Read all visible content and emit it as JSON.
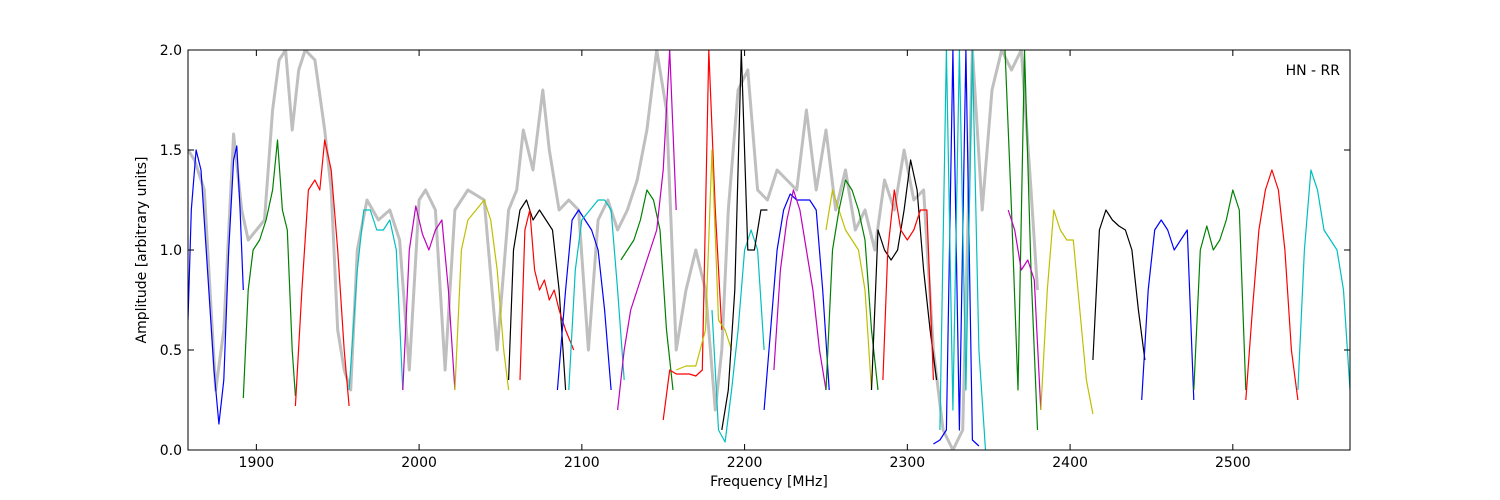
{
  "chart_data": {
    "type": "line",
    "title": "",
    "annotation": "HN - RR",
    "xlabel": "Frequency [MHz]",
    "ylabel": "Amplitude [arbitrary units]",
    "xlim": [
      1858,
      2572
    ],
    "ylim": [
      0.0,
      2.0
    ],
    "xticks": [
      1900,
      2000,
      2100,
      2200,
      2300,
      2400,
      2500
    ],
    "yticks": [
      0.0,
      0.5,
      1.0,
      1.5,
      2.0
    ],
    "xtick_labels": [
      "1900",
      "2000",
      "2100",
      "2200",
      "2300",
      "2400",
      "2500"
    ],
    "ytick_labels": [
      "0.0",
      "0.5",
      "1.0",
      "1.5",
      "2.0"
    ],
    "grid": false,
    "envelope": {
      "color": "#bfbfbf",
      "x": [
        1858,
        1862,
        1868,
        1875,
        1880,
        1886,
        1891,
        1895,
        1900,
        1905,
        1910,
        1914,
        1918,
        1922,
        1926,
        1930,
        1936,
        1942,
        1946,
        1950,
        1954,
        1958,
        1962,
        1968,
        1975,
        1982,
        1988,
        1994,
        2000,
        2004,
        2010,
        2016,
        2022,
        2030,
        2040,
        2048,
        2055,
        2060,
        2064,
        2070,
        2076,
        2080,
        2086,
        2092,
        2098,
        2104,
        2110,
        2116,
        2122,
        2128,
        2134,
        2140,
        2146,
        2152,
        2158,
        2164,
        2170,
        2176,
        2182,
        2186,
        2190,
        2196,
        2202,
        2208,
        2214,
        2220,
        2226,
        2232,
        2238,
        2244,
        2250,
        2256,
        2262,
        2268,
        2274,
        2280,
        2286,
        2292,
        2298,
        2304,
        2310,
        2316,
        2322,
        2328,
        2334,
        2340,
        2346,
        2352,
        2358,
        2364,
        2370,
        2376,
        2380
      ],
      "y": [
        1.5,
        1.45,
        1.3,
        0.3,
        0.6,
        1.58,
        1.2,
        1.05,
        1.1,
        1.15,
        1.7,
        1.95,
        2.0,
        1.6,
        1.9,
        2.0,
        1.95,
        1.6,
        1.3,
        0.6,
        0.4,
        0.3,
        1.0,
        1.25,
        1.15,
        1.2,
        1.05,
        0.4,
        1.25,
        1.3,
        1.2,
        0.4,
        1.2,
        1.3,
        1.25,
        0.5,
        1.2,
        1.3,
        1.6,
        1.4,
        1.8,
        1.5,
        1.2,
        1.25,
        1.2,
        0.5,
        1.15,
        1.25,
        1.1,
        1.2,
        1.35,
        1.6,
        2.0,
        1.7,
        0.5,
        0.8,
        1.0,
        0.8,
        0.2,
        0.5,
        1.2,
        1.8,
        1.9,
        1.3,
        1.25,
        1.4,
        1.35,
        1.3,
        1.7,
        1.3,
        1.6,
        1.2,
        1.4,
        1.1,
        1.2,
        1.0,
        1.35,
        1.2,
        1.5,
        1.25,
        1.3,
        0.5,
        0.1,
        0.0,
        0.1,
        2.0,
        1.2,
        1.8,
        2.0,
        1.9,
        2.0,
        1.3,
        0.8
      ]
    },
    "series": [
      {
        "color": "#0000ff",
        "x": [
          1858,
          1860,
          1863,
          1866,
          1870,
          1874,
          1877,
          1880,
          1883,
          1886,
          1888,
          1890,
          1892
        ],
        "y": [
          0.65,
          1.2,
          1.5,
          1.4,
          0.9,
          0.4,
          0.13,
          0.35,
          1.0,
          1.45,
          1.52,
          1.2,
          0.8
        ]
      },
      {
        "color": "#008000",
        "x": [
          1892,
          1895,
          1898,
          1902,
          1906,
          1910,
          1913,
          1916,
          1919,
          1922,
          1924
        ],
        "y": [
          0.26,
          0.8,
          1.0,
          1.05,
          1.15,
          1.3,
          1.55,
          1.2,
          1.1,
          0.5,
          0.27
        ]
      },
      {
        "color": "#ff0000",
        "x": [
          1924,
          1928,
          1932,
          1936,
          1939,
          1942,
          1946,
          1950,
          1954,
          1957
        ],
        "y": [
          0.22,
          0.8,
          1.3,
          1.35,
          1.3,
          1.55,
          1.4,
          1.0,
          0.5,
          0.22
        ]
      },
      {
        "color": "#00bfbf",
        "x": [
          1957,
          1962,
          1966,
          1970,
          1974,
          1978,
          1982,
          1986,
          1990
        ],
        "y": [
          0.3,
          0.9,
          1.2,
          1.2,
          1.1,
          1.1,
          1.15,
          1.0,
          0.3
        ]
      },
      {
        "color": "#bf00bf",
        "x": [
          1990,
          1994,
          1998,
          2002,
          2006,
          2010,
          2014,
          2018,
          2022
        ],
        "y": [
          0.3,
          1.0,
          1.22,
          1.08,
          1.0,
          1.1,
          1.15,
          0.8,
          0.3
        ]
      },
      {
        "color": "#bfbf00",
        "x": [
          2022,
          2026,
          2030,
          2035,
          2040,
          2044,
          2048,
          2052,
          2055
        ],
        "y": [
          0.3,
          1.0,
          1.15,
          1.2,
          1.25,
          1.15,
          0.9,
          0.5,
          0.3
        ]
      },
      {
        "color": "#000000",
        "x": [
          2055,
          2058,
          2062,
          2066,
          2070,
          2074,
          2078,
          2082,
          2086,
          2090
        ],
        "y": [
          0.35,
          1.0,
          1.2,
          1.25,
          1.15,
          1.2,
          1.15,
          1.1,
          0.8,
          0.3
        ]
      },
      {
        "color": "#ff0000",
        "x": [
          2062,
          2065,
          2068,
          2071,
          2074,
          2077,
          2080,
          2083,
          2086,
          2090,
          2095
        ],
        "y": [
          0.35,
          1.1,
          1.2,
          0.9,
          0.8,
          0.85,
          0.75,
          0.8,
          0.7,
          0.6,
          0.5
        ]
      },
      {
        "color": "#0000ff",
        "x": [
          2085,
          2090,
          2094,
          2098,
          2102,
          2106,
          2110,
          2114,
          2118
        ],
        "y": [
          0.3,
          0.8,
          1.15,
          1.2,
          1.15,
          1.1,
          1.0,
          0.7,
          0.3
        ]
      },
      {
        "color": "#00bfbf",
        "x": [
          2092,
          2096,
          2100,
          2105,
          2110,
          2114,
          2118,
          2122,
          2126
        ],
        "y": [
          0.3,
          0.9,
          1.15,
          1.2,
          1.25,
          1.25,
          1.2,
          0.8,
          0.35
        ]
      },
      {
        "color": "#008000",
        "x": [
          2124,
          2128,
          2132,
          2136,
          2140,
          2144,
          2148,
          2152,
          2156
        ],
        "y": [
          0.95,
          1.0,
          1.05,
          1.15,
          1.3,
          1.25,
          1.1,
          0.6,
          0.3
        ]
      },
      {
        "color": "#bf00bf",
        "x": [
          2122,
          2126,
          2130,
          2134,
          2138,
          2142,
          2146,
          2150,
          2154,
          2158
        ],
        "y": [
          0.2,
          0.5,
          0.7,
          0.8,
          0.9,
          1.0,
          1.1,
          1.4,
          2.0,
          1.2
        ]
      },
      {
        "color": "#ff0000",
        "x": [
          2150,
          2154,
          2158,
          2162,
          2166,
          2170,
          2174,
          2178,
          2182,
          2186
        ],
        "y": [
          0.15,
          0.4,
          0.38,
          0.38,
          0.38,
          0.37,
          0.4,
          2.0,
          1.2,
          0.6
        ]
      },
      {
        "color": "#bfbf00",
        "x": [
          2158,
          2164,
          2170,
          2176,
          2180,
          2184,
          2188,
          2192
        ],
        "y": [
          0.4,
          0.42,
          0.42,
          0.6,
          1.5,
          0.65,
          0.6,
          0.5
        ]
      },
      {
        "color": "#00bfbf",
        "x": [
          2180,
          2184,
          2188,
          2192,
          2196,
          2200,
          2204,
          2208,
          2212
        ],
        "y": [
          0.7,
          0.1,
          0.04,
          0.3,
          0.6,
          1.0,
          1.1,
          1.0,
          0.5
        ]
      },
      {
        "color": "#000000",
        "x": [
          2186,
          2190,
          2194,
          2198,
          2202,
          2206,
          2210,
          2214
        ],
        "y": [
          0.1,
          0.3,
          0.8,
          2.0,
          1.0,
          1.0,
          1.2,
          1.2
        ]
      },
      {
        "color": "#0000ff",
        "x": [
          2212,
          2216,
          2220,
          2224,
          2228,
          2232,
          2236,
          2240,
          2244,
          2248,
          2252
        ],
        "y": [
          0.2,
          0.6,
          1.0,
          1.2,
          1.28,
          1.25,
          1.25,
          1.25,
          1.2,
          0.8,
          0.3
        ]
      },
      {
        "color": "#bf00bf",
        "x": [
          2218,
          2222,
          2226,
          2230,
          2234,
          2238,
          2242,
          2246,
          2250
        ],
        "y": [
          0.4,
          0.9,
          1.15,
          1.3,
          1.2,
          1.0,
          0.8,
          0.5,
          0.3
        ]
      },
      {
        "color": "#bfbf00",
        "x": [
          2250,
          2254,
          2258,
          2262,
          2266,
          2270,
          2274,
          2278
        ],
        "y": [
          1.1,
          1.3,
          1.2,
          1.1,
          1.05,
          1.0,
          0.8,
          0.3
        ]
      },
      {
        "color": "#008000",
        "x": [
          2250,
          2254,
          2258,
          2262,
          2266,
          2270,
          2274,
          2278,
          2282
        ],
        "y": [
          0.3,
          1.0,
          1.2,
          1.35,
          1.3,
          1.2,
          1.05,
          0.6,
          0.3
        ]
      },
      {
        "color": "#000000",
        "x": [
          2278,
          2282,
          2286,
          2290,
          2294,
          2298,
          2302,
          2306,
          2310,
          2314,
          2318
        ],
        "y": [
          0.3,
          1.1,
          1.0,
          0.95,
          1.0,
          1.2,
          1.45,
          1.3,
          0.9,
          0.6,
          0.35
        ]
      },
      {
        "color": "#ff0000",
        "x": [
          2285,
          2288,
          2292,
          2296,
          2300,
          2304,
          2308,
          2312,
          2316
        ],
        "y": [
          0.35,
          1.0,
          1.3,
          1.1,
          1.05,
          1.1,
          1.2,
          1.2,
          0.35
        ]
      },
      {
        "color": "#0000ff",
        "x": [
          2316,
          2320,
          2324,
          2328,
          2332,
          2336,
          2340,
          2344
        ],
        "y": [
          0.03,
          0.05,
          0.1,
          2.0,
          0.1,
          2.0,
          0.05,
          0.02
        ]
      },
      {
        "color": "#00bfbf",
        "x": [
          2320,
          2324,
          2328,
          2332,
          2336,
          2340,
          2344,
          2348
        ],
        "y": [
          0.1,
          2.0,
          0.2,
          2.0,
          0.3,
          2.0,
          0.5,
          0.0
        ]
      },
      {
        "color": "#008000",
        "x": [
          2360,
          2364,
          2368,
          2372,
          2376,
          2380
        ],
        "y": [
          2.0,
          1.2,
          0.3,
          2.0,
          0.9,
          0.1
        ]
      },
      {
        "color": "#bf00bf",
        "x": [
          2362,
          2366,
          2370,
          2374,
          2378,
          2382
        ],
        "y": [
          1.2,
          1.1,
          0.9,
          0.95,
          0.85,
          0.2
        ]
      },
      {
        "color": "#bfbf00",
        "x": [
          2382,
          2386,
          2390,
          2394,
          2398,
          2402,
          2406,
          2410,
          2414
        ],
        "y": [
          0.2,
          0.8,
          1.2,
          1.1,
          1.05,
          1.05,
          0.7,
          0.35,
          0.18
        ]
      },
      {
        "color": "#000000",
        "x": [
          2414,
          2418,
          2422,
          2426,
          2430,
          2434,
          2438,
          2442,
          2446
        ],
        "y": [
          0.45,
          1.1,
          1.2,
          1.15,
          1.12,
          1.1,
          1.0,
          0.7,
          0.45
        ]
      },
      {
        "color": "#0000ff",
        "x": [
          2444,
          2448,
          2452,
          2456,
          2460,
          2464,
          2468,
          2472,
          2476
        ],
        "y": [
          0.25,
          0.8,
          1.1,
          1.15,
          1.1,
          1.0,
          1.05,
          1.1,
          0.25
        ]
      },
      {
        "color": "#008000",
        "x": [
          2476,
          2480,
          2484,
          2488,
          2492,
          2496,
          2500,
          2504,
          2508
        ],
        "y": [
          0.3,
          1.0,
          1.12,
          1.0,
          1.05,
          1.15,
          1.3,
          1.2,
          0.3
        ]
      },
      {
        "color": "#ff0000",
        "x": [
          2508,
          2512,
          2516,
          2520,
          2524,
          2528,
          2532,
          2536,
          2540
        ],
        "y": [
          0.25,
          0.7,
          1.1,
          1.3,
          1.4,
          1.3,
          1.0,
          0.5,
          0.25
        ]
      },
      {
        "color": "#00bfbf",
        "x": [
          2540,
          2544,
          2548,
          2552,
          2556,
          2560,
          2564,
          2568,
          2572
        ],
        "y": [
          0.3,
          1.0,
          1.4,
          1.3,
          1.1,
          1.05,
          1.0,
          0.8,
          0.3
        ]
      }
    ]
  }
}
